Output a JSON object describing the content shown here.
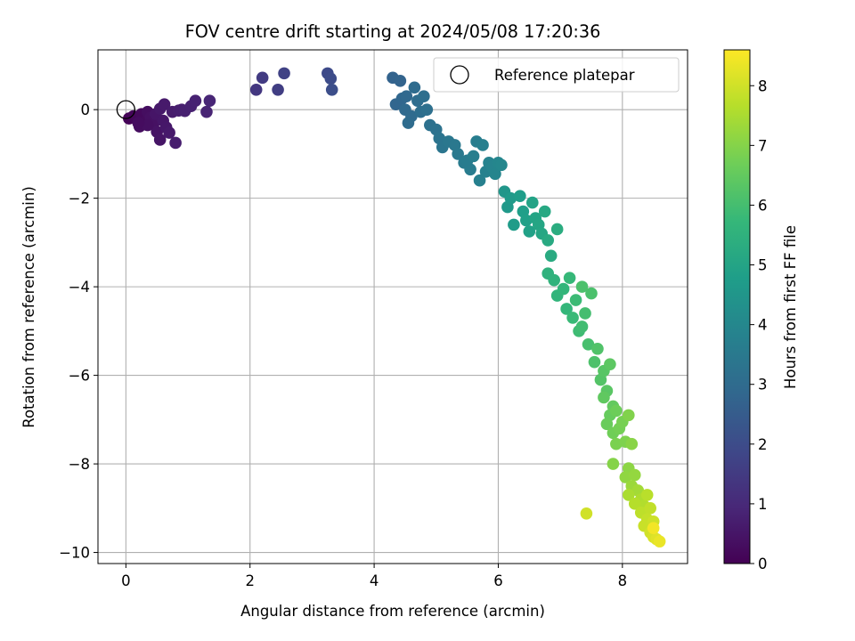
{
  "chart_data": {
    "type": "scatter",
    "title": "FOV centre drift starting at 2024/05/08 17:20:36",
    "xlabel": "Angular distance from reference (arcmin)",
    "ylabel": "Rotation from reference (arcmin)",
    "xlim": [
      -0.45,
      9.05
    ],
    "ylim": [
      -10.25,
      1.35
    ],
    "xticks": [
      0,
      2,
      4,
      6,
      8
    ],
    "yticks": [
      0,
      -2,
      -4,
      -6,
      -8,
      -10
    ],
    "xtick_labels": [
      "0",
      "2",
      "4",
      "6",
      "8"
    ],
    "ytick_labels": [
      "0",
      "−2",
      "−4",
      "−6",
      "−8",
      "−10"
    ],
    "grid": true,
    "legend": {
      "placement": "top-right",
      "entries": [
        "Reference platepar"
      ]
    },
    "reference_point": {
      "x": 0,
      "y": 0
    },
    "colorbar": {
      "label": "Hours from first FF file",
      "range": [
        0,
        8.6
      ],
      "ticks": [
        0,
        1,
        2,
        3,
        4,
        5,
        6,
        7,
        8
      ],
      "tick_labels": [
        "0",
        "1",
        "2",
        "3",
        "4",
        "5",
        "6",
        "7",
        "8"
      ],
      "colormap": "viridis",
      "colors": [
        "#440154",
        "#482878",
        "#3e4989",
        "#31688e",
        "#26828e",
        "#1f9e89",
        "#35b779",
        "#6ece58",
        "#b5de2b",
        "#fde725"
      ]
    },
    "series": [
      {
        "points": [
          [
            0.05,
            -0.2,
            0.05
          ],
          [
            0.12,
            -0.15,
            0.1
          ],
          [
            0.18,
            -0.22,
            0.15
          ],
          [
            0.25,
            -0.1,
            0.2
          ],
          [
            0.3,
            -0.28,
            0.25
          ],
          [
            0.22,
            -0.38,
            0.3
          ],
          [
            0.35,
            -0.05,
            0.32
          ],
          [
            0.4,
            -0.18,
            0.36
          ],
          [
            0.45,
            -0.3,
            0.4
          ],
          [
            0.5,
            -0.5,
            0.44
          ],
          [
            0.55,
            -0.68,
            0.48
          ],
          [
            0.48,
            -0.1,
            0.5
          ],
          [
            0.6,
            -0.25,
            0.52
          ],
          [
            0.65,
            -0.4,
            0.55
          ],
          [
            0.55,
            0.02,
            0.57
          ],
          [
            0.7,
            -0.52,
            0.6
          ],
          [
            0.62,
            0.12,
            0.62
          ],
          [
            0.75,
            -0.05,
            0.65
          ],
          [
            0.8,
            -0.75,
            0.68
          ],
          [
            0.85,
            -0.02,
            0.7
          ],
          [
            0.9,
            0.0,
            0.72
          ],
          [
            0.95,
            -0.03,
            0.75
          ],
          [
            1.05,
            0.08,
            0.78
          ],
          [
            1.12,
            0.2,
            0.8
          ],
          [
            1.3,
            -0.05,
            0.85
          ],
          [
            1.35,
            0.2,
            0.9
          ],
          [
            0.35,
            -0.35,
            0.35
          ],
          [
            0.2,
            -0.3,
            0.28
          ],
          [
            2.1,
            0.45,
            1.4
          ],
          [
            2.2,
            0.72,
            1.5
          ],
          [
            2.45,
            0.45,
            1.6
          ],
          [
            2.55,
            0.82,
            1.7
          ],
          [
            3.25,
            0.82,
            1.95
          ],
          [
            3.3,
            0.7,
            2.0
          ],
          [
            3.32,
            0.45,
            2.05
          ],
          [
            4.3,
            0.72,
            2.7
          ],
          [
            4.42,
            0.65,
            2.75
          ],
          [
            4.35,
            0.12,
            2.8
          ],
          [
            4.45,
            0.25,
            2.85
          ],
          [
            4.52,
            0.3,
            2.9
          ],
          [
            4.5,
            0.0,
            2.95
          ],
          [
            4.6,
            -0.15,
            2.98
          ],
          [
            4.55,
            -0.3,
            3.0
          ],
          [
            4.65,
            0.5,
            3.02
          ],
          [
            4.7,
            0.2,
            3.05
          ],
          [
            4.75,
            -0.05,
            3.1
          ],
          [
            4.8,
            0.3,
            3.12
          ],
          [
            4.85,
            0.0,
            3.15
          ],
          [
            4.9,
            -0.35,
            3.2
          ],
          [
            5.0,
            -0.45,
            3.25
          ],
          [
            5.05,
            -0.65,
            3.3
          ],
          [
            5.1,
            -0.85,
            3.35
          ],
          [
            5.2,
            -0.72,
            3.4
          ],
          [
            5.3,
            -0.8,
            3.45
          ],
          [
            5.35,
            -1.0,
            3.5
          ],
          [
            5.45,
            -1.2,
            3.55
          ],
          [
            5.55,
            -1.35,
            3.6
          ],
          [
            5.5,
            -1.15,
            3.62
          ],
          [
            5.65,
            -0.72,
            3.65
          ],
          [
            5.6,
            -1.05,
            3.68
          ],
          [
            5.75,
            -0.8,
            3.72
          ],
          [
            5.7,
            -1.6,
            3.76
          ],
          [
            5.8,
            -1.4,
            3.8
          ],
          [
            5.85,
            -1.2,
            3.84
          ],
          [
            5.9,
            -1.3,
            3.88
          ],
          [
            5.95,
            -1.45,
            3.92
          ],
          [
            6.0,
            -1.2,
            3.96
          ],
          [
            6.05,
            -1.25,
            4.0
          ],
          [
            6.1,
            -1.85,
            4.5
          ],
          [
            6.15,
            -2.2,
            4.6
          ],
          [
            6.2,
            -2.0,
            4.65
          ],
          [
            6.25,
            -2.6,
            4.7
          ],
          [
            6.35,
            -1.95,
            4.75
          ],
          [
            6.4,
            -2.3,
            4.8
          ],
          [
            6.45,
            -2.5,
            4.85
          ],
          [
            6.5,
            -2.75,
            4.9
          ],
          [
            6.55,
            -2.1,
            4.95
          ],
          [
            6.6,
            -2.45,
            5.0
          ],
          [
            6.65,
            -2.6,
            5.05
          ],
          [
            6.7,
            -2.8,
            5.1
          ],
          [
            6.75,
            -2.3,
            5.15
          ],
          [
            6.8,
            -2.95,
            5.2
          ],
          [
            6.85,
            -3.3,
            5.25
          ],
          [
            6.95,
            -2.7,
            5.3
          ],
          [
            6.8,
            -3.7,
            5.5
          ],
          [
            6.9,
            -3.85,
            5.55
          ],
          [
            6.95,
            -4.2,
            5.6
          ],
          [
            7.05,
            -4.05,
            5.65
          ],
          [
            7.1,
            -4.5,
            5.7
          ],
          [
            7.15,
            -3.8,
            5.75
          ],
          [
            7.2,
            -4.7,
            5.8
          ],
          [
            7.25,
            -4.3,
            5.85
          ],
          [
            7.3,
            -5.0,
            5.9
          ],
          [
            7.35,
            -4.9,
            5.95
          ],
          [
            7.4,
            -4.6,
            6.0
          ],
          [
            7.45,
            -5.3,
            6.05
          ],
          [
            7.5,
            -4.15,
            6.1
          ],
          [
            7.35,
            -4.0,
            6.12
          ],
          [
            7.55,
            -5.7,
            6.15
          ],
          [
            7.6,
            -5.4,
            6.2
          ],
          [
            7.65,
            -6.1,
            6.25
          ],
          [
            7.7,
            -5.9,
            6.3
          ],
          [
            7.75,
            -6.35,
            6.35
          ],
          [
            7.8,
            -5.75,
            6.4
          ],
          [
            7.7,
            -6.5,
            6.45
          ],
          [
            7.85,
            -6.7,
            6.5
          ],
          [
            7.8,
            -6.9,
            6.55
          ],
          [
            7.75,
            -7.1,
            6.6
          ],
          [
            7.9,
            -6.8,
            6.65
          ],
          [
            7.85,
            -7.3,
            6.7
          ],
          [
            7.95,
            -7.2,
            6.75
          ],
          [
            8.0,
            -7.05,
            6.8
          ],
          [
            7.9,
            -7.55,
            6.85
          ],
          [
            8.05,
            -7.5,
            6.9
          ],
          [
            8.1,
            -6.9,
            6.95
          ],
          [
            7.85,
            -8.0,
            7.0
          ],
          [
            8.15,
            -7.55,
            7.05
          ],
          [
            8.1,
            -8.1,
            7.1
          ],
          [
            8.05,
            -8.3,
            7.15
          ],
          [
            8.2,
            -8.25,
            7.2
          ],
          [
            8.15,
            -8.5,
            7.3
          ],
          [
            8.25,
            -8.6,
            7.4
          ],
          [
            8.1,
            -8.7,
            7.5
          ],
          [
            8.3,
            -8.8,
            7.55
          ],
          [
            8.35,
            -8.95,
            7.6
          ],
          [
            8.2,
            -8.9,
            7.65
          ],
          [
            8.4,
            -8.7,
            7.7
          ],
          [
            8.3,
            -9.1,
            7.75
          ],
          [
            8.45,
            -9.0,
            7.8
          ],
          [
            8.4,
            -9.25,
            7.85
          ],
          [
            8.35,
            -9.4,
            7.9
          ],
          [
            8.5,
            -9.3,
            7.95
          ],
          [
            8.45,
            -9.55,
            8.0
          ],
          [
            8.5,
            -9.65,
            8.1
          ],
          [
            8.55,
            -9.7,
            8.2
          ],
          [
            8.6,
            -9.75,
            8.35
          ],
          [
            8.5,
            -9.45,
            8.45
          ],
          [
            7.42,
            -9.12,
            8.0
          ]
        ]
      }
    ]
  }
}
